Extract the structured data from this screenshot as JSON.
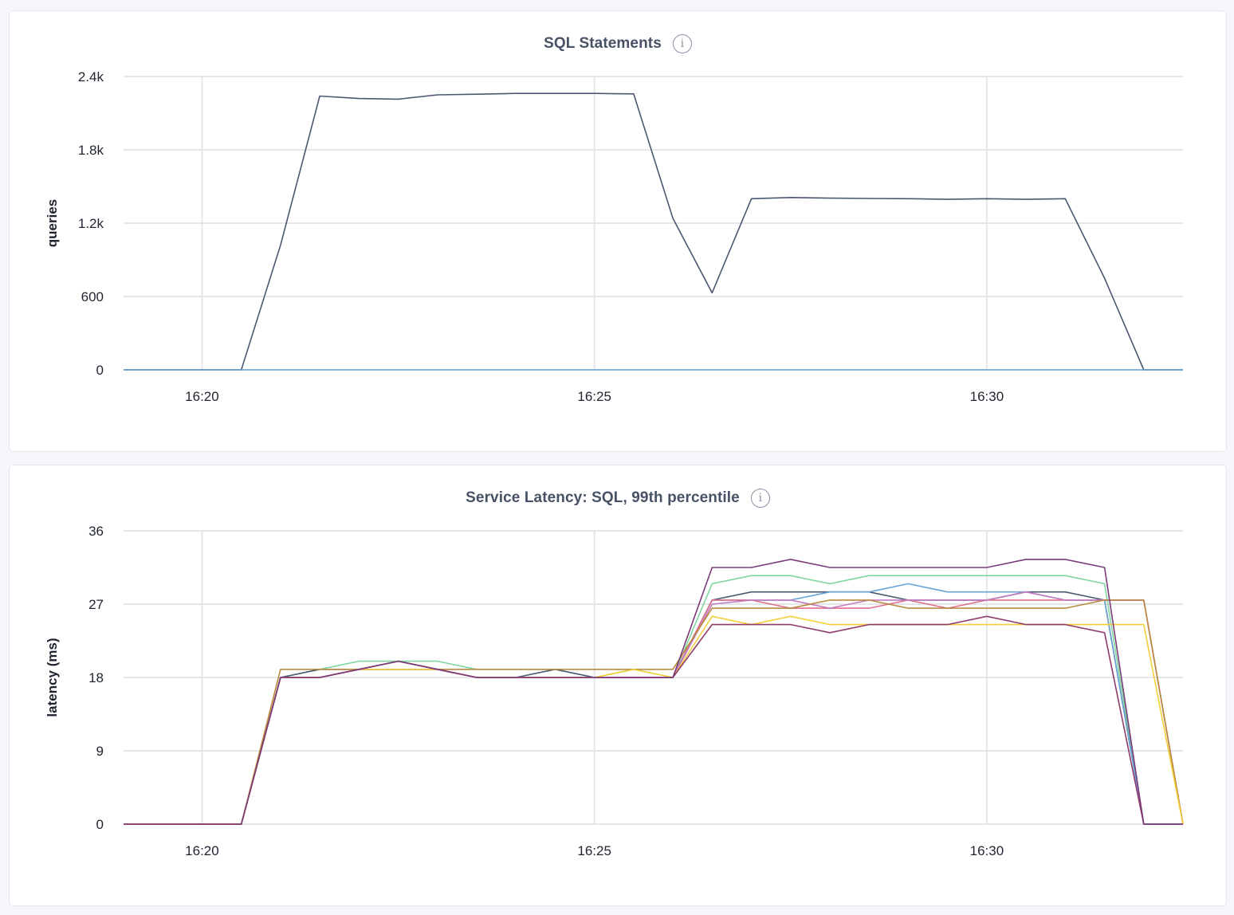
{
  "panels": [
    {
      "title": "SQL Statements",
      "info_icon": "info-icon"
    },
    {
      "title": "Service Latency: SQL, 99th percentile",
      "info_icon": "info-icon"
    }
  ],
  "chart_data": [
    {
      "type": "line",
      "title": "SQL Statements",
      "xlabel": "",
      "ylabel": "queries",
      "ylim": [
        0,
        2400
      ],
      "xlim": [
        "16:19",
        "16:32.5"
      ],
      "x_ticks": [
        "16:20",
        "16:25",
        "16:30"
      ],
      "y_ticks": [
        {
          "value": 0,
          "label": "0"
        },
        {
          "value": 600,
          "label": "600"
        },
        {
          "value": 1200,
          "label": "1.2k"
        },
        {
          "value": 1800,
          "label": "1.8k"
        },
        {
          "value": 2400,
          "label": "2.4k"
        }
      ],
      "grid": true,
      "x": [
        "16:19:00",
        "16:19:30",
        "16:20:00",
        "16:20:30",
        "16:21:00",
        "16:21:30",
        "16:22:00",
        "16:22:30",
        "16:23:00",
        "16:23:30",
        "16:24:00",
        "16:24:30",
        "16:25:00",
        "16:25:30",
        "16:26:00",
        "16:26:30",
        "16:27:00",
        "16:27:30",
        "16:28:00",
        "16:28:30",
        "16:29:00",
        "16:29:30",
        "16:30:00",
        "16:30:30",
        "16:31:00",
        "16:31:30",
        "16:32:00",
        "16:32:30"
      ],
      "series": [
        {
          "color": "#4a5872",
          "values": [
            0,
            0,
            0,
            0,
            1020,
            2240,
            2220,
            2215,
            2250,
            2255,
            2262,
            2262,
            2262,
            2258,
            1240,
            630,
            1400,
            1410,
            1405,
            1402,
            1400,
            1395,
            1400,
            1395,
            1400,
            750,
            0,
            0
          ]
        },
        {
          "color": "#6aa3d5",
          "values": [
            0,
            0,
            0,
            0,
            0,
            0,
            0,
            0,
            0,
            0,
            0,
            0,
            0,
            0,
            0,
            0,
            0,
            0,
            0,
            0,
            0,
            0,
            0,
            0,
            0,
            0,
            0,
            0
          ]
        }
      ]
    },
    {
      "type": "line",
      "title": "Service Latency: SQL, 99th percentile",
      "xlabel": "",
      "ylabel": "latency (ms)",
      "ylim": [
        0,
        36
      ],
      "xlim": [
        "16:19",
        "16:32.5"
      ],
      "x_ticks": [
        "16:20",
        "16:25",
        "16:30"
      ],
      "y_ticks": [
        {
          "value": 0,
          "label": "0"
        },
        {
          "value": 9,
          "label": "9"
        },
        {
          "value": 18,
          "label": "18"
        },
        {
          "value": 27,
          "label": "27"
        },
        {
          "value": 36,
          "label": "36"
        }
      ],
      "grid": true,
      "x": [
        "16:19:00",
        "16:19:30",
        "16:20:00",
        "16:20:30",
        "16:21:00",
        "16:21:30",
        "16:22:00",
        "16:22:30",
        "16:23:00",
        "16:23:30",
        "16:24:00",
        "16:24:30",
        "16:25:00",
        "16:25:30",
        "16:26:00",
        "16:26:30",
        "16:27:00",
        "16:27:30",
        "16:28:00",
        "16:28:30",
        "16:29:00",
        "16:29:30",
        "16:30:00",
        "16:30:30",
        "16:31:00",
        "16:31:30",
        "16:32:00",
        "16:32:30"
      ],
      "series": [
        {
          "color": "#7fd69e",
          "values": [
            0,
            0,
            0,
            0,
            18,
            19,
            20,
            20,
            20,
            19,
            19,
            19,
            18,
            19,
            18,
            29.5,
            30.5,
            30.5,
            29.5,
            30.5,
            30.5,
            30.5,
            30.5,
            30.5,
            30.5,
            29.5,
            0,
            0
          ]
        },
        {
          "color": "#4a5872",
          "values": [
            0,
            0,
            0,
            0,
            18,
            19,
            19,
            20,
            19,
            18,
            18,
            19,
            18,
            18,
            18,
            27.5,
            28.5,
            28.5,
            28.5,
            28.5,
            27.5,
            27.5,
            27.5,
            28.5,
            28.5,
            27.5,
            0,
            0
          ]
        },
        {
          "color": "#6aa3d5",
          "values": [
            0,
            0,
            0,
            0,
            18,
            18,
            19,
            19,
            19,
            18,
            18,
            18,
            18,
            18,
            18,
            27.5,
            27.5,
            27.5,
            28.5,
            28.5,
            29.5,
            28.5,
            28.5,
            28.5,
            27.5,
            27.5,
            0,
            0
          ]
        },
        {
          "color": "#e06f8b",
          "values": [
            0,
            0,
            0,
            0,
            18,
            18,
            19,
            19,
            19,
            18,
            18,
            18,
            18,
            18,
            18,
            27.5,
            27.5,
            26.5,
            26.5,
            26.5,
            27.5,
            26.5,
            27.5,
            27.5,
            27.5,
            27.5,
            27.5,
            0
          ]
        },
        {
          "color": "#c47ac0",
          "values": [
            0,
            0,
            0,
            0,
            18,
            18,
            19,
            19,
            19,
            18,
            18,
            18,
            18,
            18,
            18,
            27,
            27.5,
            27.5,
            26.5,
            27.5,
            27.5,
            27.5,
            27.5,
            28.5,
            27.5,
            27.5,
            27.5,
            0
          ]
        },
        {
          "color": "#b88a3c",
          "values": [
            0,
            0,
            0,
            0,
            19,
            19,
            19,
            19,
            19,
            19,
            19,
            19,
            19,
            19,
            19,
            26.5,
            26.5,
            26.5,
            27.5,
            27.5,
            26.5,
            26.5,
            26.5,
            26.5,
            26.5,
            27.5,
            27.5,
            0
          ]
        },
        {
          "color": "#f2cf3a",
          "values": [
            0,
            0,
            0,
            0,
            18,
            18,
            19,
            19,
            19,
            18,
            18,
            18,
            18,
            19,
            18,
            25.5,
            24.5,
            25.5,
            24.5,
            24.5,
            24.5,
            24.5,
            24.5,
            24.5,
            24.5,
            24.5,
            24.5,
            0
          ]
        },
        {
          "color": "#8e3b6a",
          "values": [
            0,
            0,
            0,
            0,
            18,
            18,
            19,
            20,
            19,
            18,
            18,
            18,
            18,
            18,
            18,
            24.5,
            24.5,
            24.5,
            23.5,
            24.5,
            24.5,
            24.5,
            25.5,
            24.5,
            24.5,
            23.5,
            0,
            0
          ]
        },
        {
          "color": "#7b3a78",
          "values": [
            0,
            0,
            0,
            0,
            18,
            18,
            19,
            20,
            19,
            18,
            18,
            18,
            18,
            18,
            18,
            31.5,
            31.5,
            32.5,
            31.5,
            31.5,
            31.5,
            31.5,
            31.5,
            32.5,
            32.5,
            31.5,
            0,
            0
          ]
        }
      ]
    }
  ]
}
